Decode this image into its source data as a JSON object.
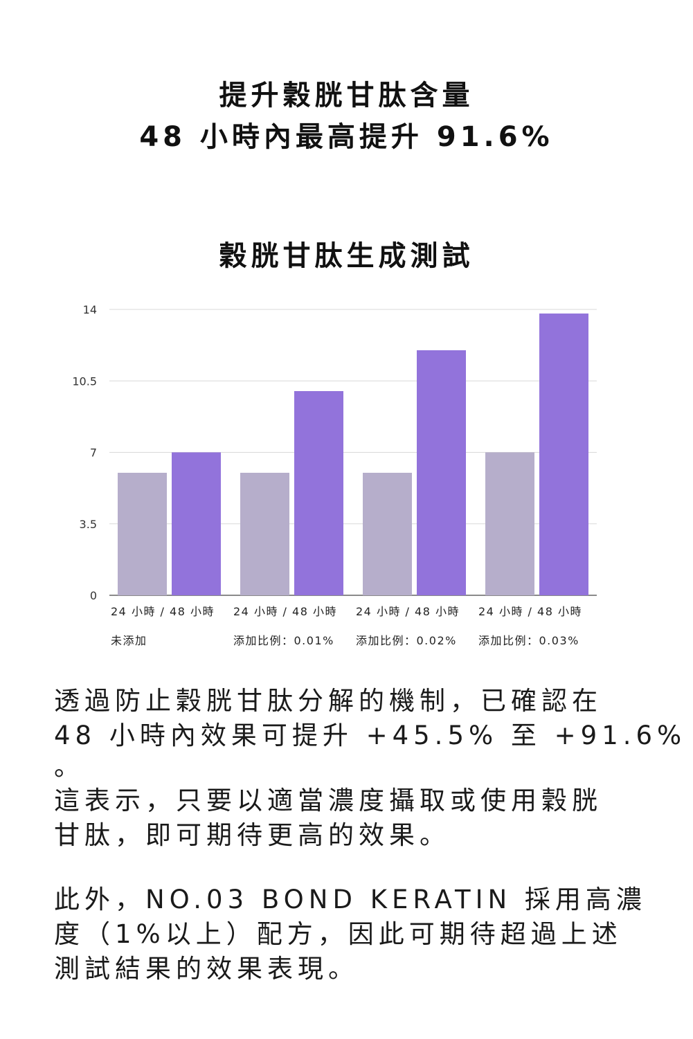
{
  "headline": {
    "line1": "提升穀胱甘肽含量",
    "line2": "48 小時內最高提升 91.6%"
  },
  "chart_title": "穀胱甘肽生成測試",
  "colors": {
    "bar_24h": "#b6aecb",
    "bar_48h": "#9273db",
    "grid": "#d9d9d9",
    "axis": "#444444"
  },
  "chart_data": {
    "type": "bar",
    "title": "穀胱甘肽生成測試",
    "ylim": [
      0,
      14
    ],
    "yticks": [
      "0",
      "3.5",
      "7",
      "10.5",
      "14"
    ],
    "grid": true,
    "legend": "none",
    "groups": [
      {
        "label_top": "24 小時 / 48 小時",
        "label_bottom": "未添加",
        "values": [
          6,
          7
        ]
      },
      {
        "label_top": "24 小時 / 48 小時",
        "label_bottom": "添加比例：0.01%",
        "values": [
          6,
          10
        ]
      },
      {
        "label_top": "24 小時 / 48 小時",
        "label_bottom": "添加比例：0.02%",
        "values": [
          6,
          12
        ]
      },
      {
        "label_top": "24 小時 / 48 小時",
        "label_bottom": "添加比例：0.03%",
        "values": [
          7,
          13.8
        ]
      }
    ]
  },
  "paragraphs": {
    "p1": [
      "透過防止穀胱甘肽分解的機制，已確認在",
      "48 小時內效果可提升 +45.5% 至 +91.6%",
      "。"
    ],
    "p2": [
      "這表示，只要以適當濃度攝取或使用穀胱",
      "甘肽，即可期待更高的效果。"
    ],
    "p3": [
      "此外，NO.03 BOND KERATIN 採用高濃",
      "度（1%以上）配方，因此可期待超過上述",
      "測試結果的效果表現。"
    ]
  }
}
